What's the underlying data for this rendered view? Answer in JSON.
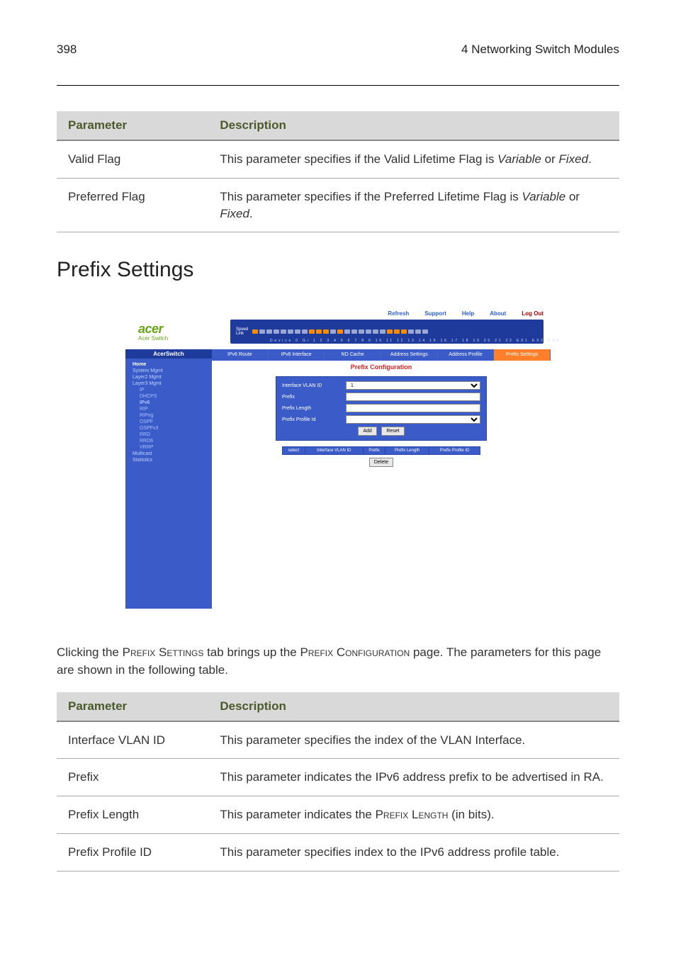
{
  "header": {
    "pageNumber": "398",
    "chapterTitle": "4 Networking Switch Modules"
  },
  "table1": {
    "headers": {
      "param": "Parameter",
      "desc": "Description"
    },
    "rows": [
      {
        "param": "Valid Flag",
        "desc_pre": "This parameter specifies if the Valid Lifetime Flag is ",
        "desc_em1": "Variable",
        "desc_mid": " or ",
        "desc_em2": "Fixed",
        "desc_post": "."
      },
      {
        "param": "Preferred Flag",
        "desc_pre": "This parameter specifies if the Preferred Lifetime Flag is ",
        "desc_em1": "Variable",
        "desc_mid": " or ",
        "desc_em2": "Fixed",
        "desc_post": "."
      }
    ]
  },
  "sectionTitle": "Prefix Settings",
  "screenshot": {
    "topnav": {
      "refresh": "Refresh",
      "support": "Support",
      "help": "Help",
      "about": "About",
      "logout": "Log Out"
    },
    "brand": {
      "name": "acer",
      "sub": "Acer Switch"
    },
    "portpanel": {
      "speedLabel": "Speed",
      "linkLabel": "Link",
      "numbers": "Device 0 Gi 1  2  3  4  5  6  7  8  9 10 11 12 13 14 15 16 17 18 19 20 21 22 EX1 EX2 EX3"
    },
    "sidebar": {
      "topTab": "AcerSwitch",
      "home": "Home",
      "sys": "System Mgmt",
      "l2": "Layer2 Mgmt",
      "l3": "Layer3 Mgmt",
      "ip": "IP",
      "dhcps": "DHCPS",
      "ipv6": "IPv6",
      "rip": "RIP",
      "ripng": "RIPng",
      "ospf": "OSPF",
      "ospfv3": "OSPFv3",
      "rrd": "RRD",
      "rrd6": "RRD6",
      "vrrp": "VRRP",
      "mcast": "Multicast",
      "stats": "Statistics"
    },
    "tabs": {
      "t1": "IPv6 Route",
      "t2": "IPv6 Interface",
      "t3": "ND Cache",
      "t4": "Address Settings",
      "t5": "Address Profile",
      "t6": "Prefix Settings"
    },
    "contentTitle": "Prefix Configuration",
    "form": {
      "f1": "Interface VLAN ID",
      "f2": "Prefix",
      "f3": "Prefix Length",
      "f4": "Prefix Profile Id",
      "valSelect": "1",
      "addBtn": "Add",
      "resetBtn": "Reset"
    },
    "grid": {
      "c1": "select",
      "c2": "Interface VLAN ID",
      "c3": "Prefix",
      "c4": "Prefix Length",
      "c5": "Prefix Profile ID",
      "deleteBtn": "Delete"
    }
  },
  "bodyPara": {
    "pre": "Clicking the ",
    "sc1": "Prefix Settings",
    "mid1": " tab brings up the ",
    "sc2": "Prefix Configuration",
    "post": " page. The parameters for this page are shown in the following table."
  },
  "table2": {
    "headers": {
      "param": "Parameter",
      "desc": "Description"
    },
    "rows": [
      {
        "param": "Interface VLAN ID",
        "desc": "This parameter specifies the index of the VLAN Interface."
      },
      {
        "param": "Prefix",
        "desc": "This parameter indicates the IPv6 address prefix to be advertised in RA."
      },
      {
        "param": "Prefix Length",
        "desc_pre": "This parameter indicates the ",
        "desc_sc": "Prefix Length",
        "desc_post": " (in bits)."
      },
      {
        "param": "Prefix Profile ID",
        "desc": "This parameter specifies index to the IPv6 address profile table."
      }
    ]
  }
}
